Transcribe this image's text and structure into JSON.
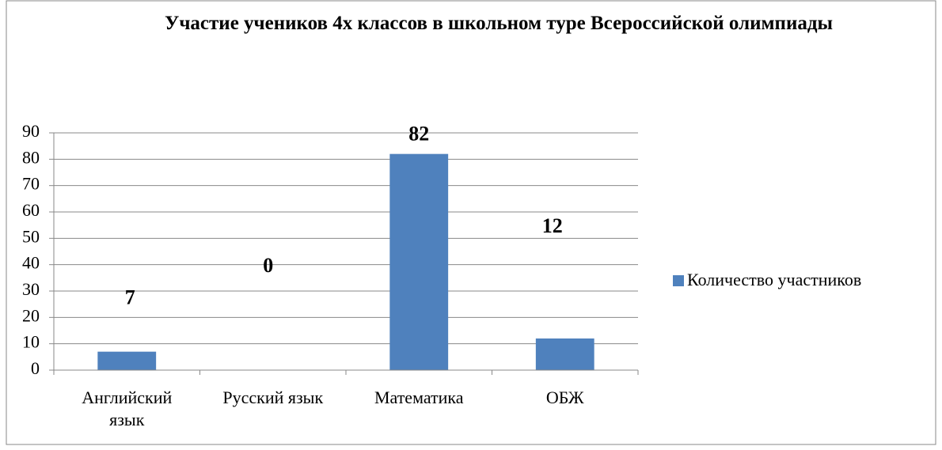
{
  "chart_data": {
    "type": "bar",
    "title": "Участие учеников 4х классов в школьном туре Всероссийской олимпиады",
    "categories": [
      "Английский язык",
      "Русский язык",
      "Математика",
      "ОБЖ"
    ],
    "series": [
      {
        "name": "Количество участников",
        "color": "#4f81bd",
        "values": [
          7,
          0,
          82,
          12
        ]
      }
    ],
    "ylim": [
      0,
      90
    ],
    "yticks": [
      0,
      10,
      20,
      30,
      40,
      50,
      60,
      70,
      80,
      90
    ],
    "grid": true,
    "legend": "right"
  }
}
